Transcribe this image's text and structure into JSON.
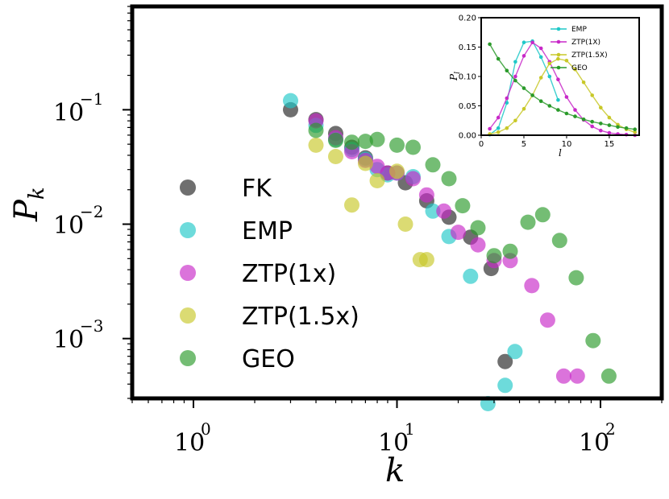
{
  "chart_data": [
    {
      "type": "scatter",
      "xlabel": "k",
      "ylabel": "P_k",
      "xscale": "log",
      "yscale": "log",
      "xlim": [
        0.5,
        200
      ],
      "ylim": [
        0.0003,
        0.8
      ],
      "x_ticks": [
        {
          "base": "10",
          "exp": "0",
          "value": 1
        },
        {
          "base": "10",
          "exp": "1",
          "value": 10
        },
        {
          "base": "10",
          "exp": "2",
          "value": 100
        }
      ],
      "y_ticks": [
        {
          "base": "10",
          "exp": "−1",
          "value": 0.1
        },
        {
          "base": "10",
          "exp": "−2",
          "value": 0.01
        },
        {
          "base": "10",
          "exp": "−3",
          "value": 0.001
        }
      ],
      "legend_position": "center-left",
      "series": [
        {
          "name": "FK",
          "color": "#222222",
          "x": [
            3,
            4,
            5,
            6,
            7,
            9,
            11,
            14,
            18,
            23,
            29,
            34
          ],
          "y": [
            0.1,
            0.082,
            0.062,
            0.047,
            0.038,
            0.028,
            0.023,
            0.016,
            0.0115,
            0.0077,
            0.0041,
            0.00063
          ]
        },
        {
          "name": "EMP",
          "color": "#1fc8c8",
          "x": [
            3,
            4,
            5,
            6,
            7,
            8,
            9,
            10,
            12,
            15,
            18,
            23,
            28,
            34,
            38
          ],
          "y": [
            0.12,
            0.073,
            0.055,
            0.045,
            0.037,
            0.03,
            0.027,
            0.028,
            0.026,
            0.013,
            0.0078,
            0.0035,
            0.00027,
            0.00039,
            0.00077
          ]
        },
        {
          "name": "ZTP(1x)",
          "color": "#c828c8",
          "x": [
            4,
            5,
            6,
            7,
            8,
            9,
            10,
            12,
            14,
            17,
            20,
            25,
            30,
            36,
            46,
            55,
            66,
            77
          ],
          "y": [
            0.08,
            0.057,
            0.043,
            0.036,
            0.032,
            0.028,
            0.028,
            0.025,
            0.018,
            0.013,
            0.0085,
            0.0066,
            0.0048,
            0.0048,
            0.0029,
            0.00145,
            0.00047,
            0.00047
          ]
        },
        {
          "name": "ZTP(1.5x)",
          "color": "#c8c828",
          "x": [
            4,
            5,
            6,
            7,
            8,
            10,
            11,
            13,
            14
          ],
          "y": [
            0.049,
            0.039,
            0.0147,
            0.034,
            0.024,
            0.029,
            0.01,
            0.0049,
            0.0049
          ]
        },
        {
          "name": "GEO",
          "color": "#2a9a2a",
          "x": [
            4,
            5,
            6,
            7,
            8,
            10,
            12,
            15,
            18,
            21,
            25,
            30,
            36,
            44,
            52,
            63,
            76,
            92,
            110
          ],
          "y": [
            0.066,
            0.054,
            0.052,
            0.053,
            0.055,
            0.049,
            0.047,
            0.033,
            0.025,
            0.0145,
            0.0093,
            0.0053,
            0.0058,
            0.0104,
            0.0121,
            0.0072,
            0.0034,
            0.00096,
            0.00047
          ]
        }
      ]
    },
    {
      "type": "line",
      "xlabel": "l",
      "ylabel": "P_l",
      "xlim": [
        0,
        18.5
      ],
      "ylim": [
        0,
        0.2
      ],
      "x_ticks": [
        "0",
        "5",
        "10",
        "15"
      ],
      "y_ticks": [
        "0.00",
        "0.05",
        "0.10",
        "0.15",
        "0.20"
      ],
      "legend_position": "upper-right",
      "series": [
        {
          "name": "EMP",
          "color": "#1fc8c8",
          "x": [
            1,
            2,
            3,
            4,
            5,
            6,
            7,
            8,
            9
          ],
          "y": [
            0.001,
            0.012,
            0.055,
            0.125,
            0.158,
            0.16,
            0.133,
            0.1,
            0.06
          ]
        },
        {
          "name": "ZTP(1X)",
          "color": "#c828c8",
          "x": [
            1,
            2,
            3,
            4,
            5,
            6,
            7,
            8,
            9,
            10,
            11,
            12,
            13,
            14,
            15,
            16,
            17,
            18
          ],
          "y": [
            0.011,
            0.03,
            0.063,
            0.1,
            0.135,
            0.158,
            0.148,
            0.125,
            0.095,
            0.065,
            0.043,
            0.026,
            0.015,
            0.008,
            0.004,
            0.002,
            0.001,
            0.0
          ]
        },
        {
          "name": "ZTP(1.5X)",
          "color": "#c8c828",
          "x": [
            1,
            2,
            3,
            4,
            5,
            6,
            7,
            8,
            9,
            10,
            11,
            12,
            13,
            14,
            15,
            16,
            17,
            18
          ],
          "y": [
            0.002,
            0.005,
            0.012,
            0.025,
            0.045,
            0.068,
            0.098,
            0.122,
            0.13,
            0.127,
            0.112,
            0.09,
            0.068,
            0.047,
            0.03,
            0.018,
            0.01,
            0.005
          ]
        },
        {
          "name": "GEO",
          "color": "#2a9a2a",
          "x": [
            1,
            2,
            3,
            4,
            5,
            6,
            7,
            8,
            9,
            10,
            11,
            12,
            13,
            14,
            15,
            16,
            17,
            18
          ],
          "y": [
            0.155,
            0.13,
            0.11,
            0.093,
            0.08,
            0.068,
            0.058,
            0.05,
            0.043,
            0.037,
            0.032,
            0.027,
            0.023,
            0.02,
            0.017,
            0.014,
            0.012,
            0.01
          ]
        }
      ]
    }
  ]
}
